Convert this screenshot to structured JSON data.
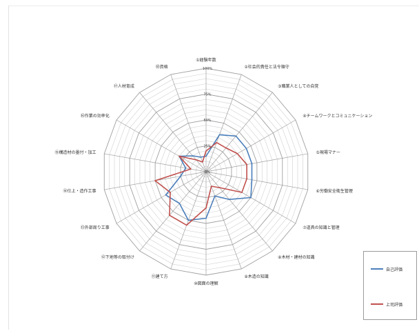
{
  "chart_data": {
    "type": "radar",
    "title": "",
    "categories": [
      "①経験年数",
      "②社会的責任と法令順守",
      "③職業人としての自覚",
      "④チームワークとコミュニケーション",
      "⑤現場マナー",
      "⑥労働安全衛生管理",
      "⑦道具の知識と管理",
      "⑧木材・建材の知識",
      "⑨木造の知識",
      "⑩図面の理解",
      "⑪建て方",
      "⑫下地等の取付け",
      "⑬外部周り工事",
      "⑭仕上・造作工事",
      "⑮構造材の墨付・加工",
      "⑯作業の効率化",
      "⑰人材育成",
      "⑱資格"
    ],
    "rings": 20,
    "tick_labels": [
      "0%",
      "25%",
      "50%",
      "75%",
      "100%"
    ],
    "tick_values": [
      0,
      25,
      50,
      75,
      100
    ],
    "rmax": 100,
    "series": [
      {
        "name": "自己評価",
        "color": "#4a7ebb",
        "values": [
          15,
          38,
          45,
          45,
          45,
          45,
          50,
          35,
          25,
          45,
          50,
          40,
          45,
          25,
          20,
          30,
          20,
          15
        ]
      },
      {
        "name": "上司評価",
        "color": "#c0504d",
        "values": [
          20,
          30,
          30,
          35,
          40,
          40,
          40,
          20,
          15,
          35,
          55,
          55,
          40,
          50,
          15,
          30,
          15,
          10
        ]
      }
    ],
    "legend_position": "bottom-right",
    "grid": true
  }
}
